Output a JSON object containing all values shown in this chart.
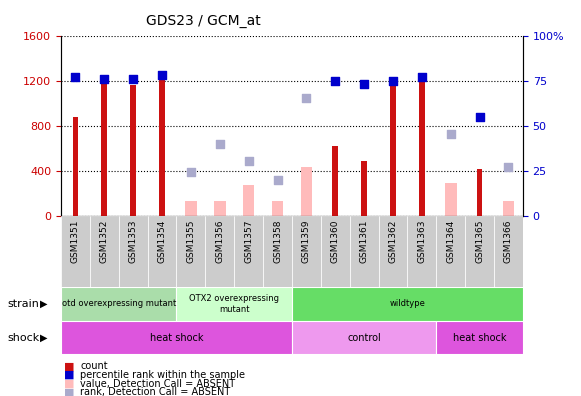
{
  "title": "GDS23 / GCM_at",
  "samples": [
    "GSM1351",
    "GSM1352",
    "GSM1353",
    "GSM1354",
    "GSM1355",
    "GSM1356",
    "GSM1357",
    "GSM1358",
    "GSM1359",
    "GSM1360",
    "GSM1361",
    "GSM1362",
    "GSM1363",
    "GSM1364",
    "GSM1365",
    "GSM1366"
  ],
  "count_values": [
    880,
    1190,
    1160,
    1240,
    0,
    0,
    0,
    0,
    0,
    620,
    490,
    1180,
    1260,
    0,
    420,
    0
  ],
  "percentile_values": [
    77,
    76,
    76,
    78,
    0,
    0,
    0,
    0,
    0,
    75,
    73,
    75,
    77,
    0,
    55,
    0
  ],
  "absent_value": [
    0,
    0,
    0,
    0,
    130,
    130,
    270,
    130,
    430,
    0,
    0,
    0,
    0,
    290,
    0,
    130
  ],
  "absent_rank": [
    0,
    0,
    0,
    0,
    390,
    640,
    490,
    320,
    1050,
    0,
    0,
    0,
    0,
    730,
    0,
    430
  ],
  "ylim_left": [
    0,
    1600
  ],
  "ylim_right": [
    0,
    100
  ],
  "yticks_left": [
    0,
    400,
    800,
    1200,
    1600
  ],
  "yticks_right": [
    0,
    25,
    50,
    75,
    100
  ],
  "bar_color_red": "#cc1111",
  "bar_color_pink": "#ffbbbb",
  "dot_color_blue": "#0000cc",
  "dot_color_lightblue": "#aaaacc",
  "strain_groups": [
    {
      "label": "otd overexpressing mutant",
      "start": 0,
      "end": 4,
      "color": "#aaddaa"
    },
    {
      "label": "OTX2 overexpressing\nmutant",
      "start": 4,
      "end": 8,
      "color": "#ccffcc"
    },
    {
      "label": "wildtype",
      "start": 8,
      "end": 16,
      "color": "#66dd66"
    }
  ],
  "shock_groups": [
    {
      "label": "heat shock",
      "start": 0,
      "end": 8,
      "color": "#dd55dd"
    },
    {
      "label": "control",
      "start": 8,
      "end": 13,
      "color": "#ee99ee"
    },
    {
      "label": "heat shock",
      "start": 13,
      "end": 16,
      "color": "#dd55dd"
    }
  ],
  "legend_items": [
    {
      "color": "#cc1111",
      "label": "count"
    },
    {
      "color": "#0000cc",
      "label": "percentile rank within the sample"
    },
    {
      "color": "#ffbbbb",
      "label": "value, Detection Call = ABSENT"
    },
    {
      "color": "#aaaacc",
      "label": "rank, Detection Call = ABSENT"
    }
  ],
  "grid_color": "#000000",
  "bg_color": "#ffffff",
  "tick_label_color_left": "#cc0000",
  "tick_label_color_right": "#0000cc",
  "bar_width": 0.5
}
